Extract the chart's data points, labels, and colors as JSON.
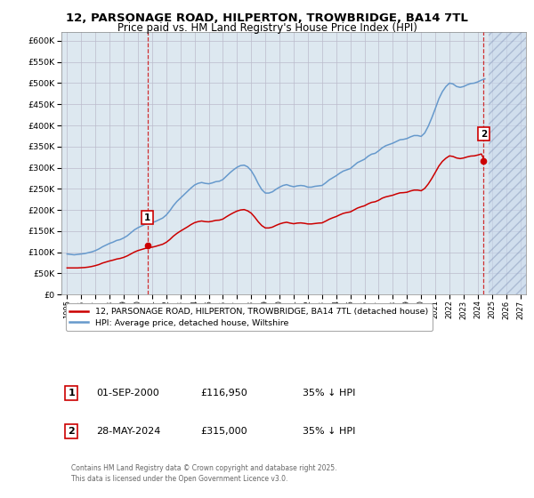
{
  "title_line1": "12, PARSONAGE ROAD, HILPERTON, TROWBRIDGE, BA14 7TL",
  "title_line2": "Price paid vs. HM Land Registry's House Price Index (HPI)",
  "xlim_start": 1994.6,
  "xlim_end": 2027.4,
  "ylim": [
    0,
    620000
  ],
  "yticks": [
    0,
    50000,
    100000,
    150000,
    200000,
    250000,
    300000,
    350000,
    400000,
    450000,
    500000,
    550000,
    600000
  ],
  "ytick_labels": [
    "£0",
    "£50K",
    "£100K",
    "£150K",
    "£200K",
    "£250K",
    "£300K",
    "£350K",
    "£400K",
    "£450K",
    "£500K",
    "£550K",
    "£600K"
  ],
  "xticks": [
    1995,
    1996,
    1997,
    1998,
    1999,
    2000,
    2001,
    2002,
    2003,
    2004,
    2005,
    2006,
    2007,
    2008,
    2009,
    2010,
    2011,
    2012,
    2013,
    2014,
    2015,
    2016,
    2017,
    2018,
    2019,
    2020,
    2021,
    2022,
    2023,
    2024,
    2025,
    2026,
    2027
  ],
  "transaction1_x": 2000.67,
  "transaction1_y": 116950,
  "transaction1_label": "1",
  "transaction2_x": 2024.41,
  "transaction2_y": 315000,
  "transaction2_label": "2",
  "vline1_x": 2000.67,
  "vline2_x": 2024.41,
  "red_line_color": "#cc0000",
  "blue_line_color": "#6699cc",
  "transaction_box_color": "#cc0000",
  "grid_color": "#bbbbcc",
  "background_color": "#dde8f0",
  "hatch_start": 2024.75,
  "hatch_color": "#aabbdd",
  "legend_line1": "12, PARSONAGE ROAD, HILPERTON, TROWBRIDGE, BA14 7TL (detached house)",
  "legend_line2": "HPI: Average price, detached house, Wiltshire",
  "table_row1": [
    "1",
    "01-SEP-2000",
    "£116,950",
    "35% ↓ HPI"
  ],
  "table_row2": [
    "2",
    "28-MAY-2024",
    "£315,000",
    "35% ↓ HPI"
  ],
  "footnote": "Contains HM Land Registry data © Crown copyright and database right 2025.\nThis data is licensed under the Open Government Licence v3.0.",
  "hpi_data_x": [
    1995.0,
    1995.25,
    1995.5,
    1995.75,
    1996.0,
    1996.25,
    1996.5,
    1996.75,
    1997.0,
    1997.25,
    1997.5,
    1997.75,
    1998.0,
    1998.25,
    1998.5,
    1998.75,
    1999.0,
    1999.25,
    1999.5,
    1999.75,
    2000.0,
    2000.25,
    2000.5,
    2000.75,
    2001.0,
    2001.25,
    2001.5,
    2001.75,
    2002.0,
    2002.25,
    2002.5,
    2002.75,
    2003.0,
    2003.25,
    2003.5,
    2003.75,
    2004.0,
    2004.25,
    2004.5,
    2004.75,
    2005.0,
    2005.25,
    2005.5,
    2005.75,
    2006.0,
    2006.25,
    2006.5,
    2006.75,
    2007.0,
    2007.25,
    2007.5,
    2007.75,
    2008.0,
    2008.25,
    2008.5,
    2008.75,
    2009.0,
    2009.25,
    2009.5,
    2009.75,
    2010.0,
    2010.25,
    2010.5,
    2010.75,
    2011.0,
    2011.25,
    2011.5,
    2011.75,
    2012.0,
    2012.25,
    2012.5,
    2012.75,
    2013.0,
    2013.25,
    2013.5,
    2013.75,
    2014.0,
    2014.25,
    2014.5,
    2014.75,
    2015.0,
    2015.25,
    2015.5,
    2015.75,
    2016.0,
    2016.25,
    2016.5,
    2016.75,
    2017.0,
    2017.25,
    2017.5,
    2017.75,
    2018.0,
    2018.25,
    2018.5,
    2018.75,
    2019.0,
    2019.25,
    2019.5,
    2019.75,
    2020.0,
    2020.25,
    2020.5,
    2020.75,
    2021.0,
    2021.25,
    2021.5,
    2021.75,
    2022.0,
    2022.25,
    2022.5,
    2022.75,
    2023.0,
    2023.25,
    2023.5,
    2023.75,
    2024.0,
    2024.25,
    2024.5
  ],
  "hpi_data_y": [
    96000,
    95000,
    94000,
    95000,
    96000,
    97000,
    99000,
    101000,
    104000,
    108000,
    113000,
    117000,
    121000,
    124000,
    128000,
    130000,
    134000,
    139000,
    146000,
    153000,
    158000,
    162000,
    166000,
    169000,
    170000,
    173000,
    177000,
    181000,
    188000,
    198000,
    210000,
    220000,
    228000,
    236000,
    244000,
    252000,
    259000,
    263000,
    265000,
    263000,
    262000,
    264000,
    267000,
    268000,
    272000,
    280000,
    288000,
    295000,
    301000,
    305000,
    306000,
    302000,
    293000,
    279000,
    262000,
    248000,
    240000,
    240000,
    243000,
    249000,
    254000,
    258000,
    260000,
    257000,
    255000,
    257000,
    258000,
    257000,
    254000,
    254000,
    256000,
    257000,
    258000,
    264000,
    271000,
    276000,
    281000,
    287000,
    292000,
    295000,
    298000,
    305000,
    312000,
    316000,
    320000,
    327000,
    332000,
    334000,
    340000,
    347000,
    352000,
    355000,
    358000,
    362000,
    366000,
    367000,
    369000,
    373000,
    376000,
    376000,
    374000,
    382000,
    398000,
    418000,
    440000,
    463000,
    480000,
    492000,
    500000,
    498000,
    492000,
    490000,
    492000,
    496000,
    499000,
    500000,
    503000,
    507000,
    510000
  ],
  "red_data_x": [
    1995.0,
    1995.25,
    1995.5,
    1995.75,
    1996.0,
    1996.25,
    1996.5,
    1996.75,
    1997.0,
    1997.25,
    1997.5,
    1997.75,
    1998.0,
    1998.25,
    1998.5,
    1998.75,
    1999.0,
    1999.25,
    1999.5,
    1999.75,
    2000.0,
    2000.25,
    2000.5,
    2000.75,
    2001.0,
    2001.25,
    2001.5,
    2001.75,
    2002.0,
    2002.25,
    2002.5,
    2002.75,
    2003.0,
    2003.25,
    2003.5,
    2003.75,
    2004.0,
    2004.25,
    2004.5,
    2004.75,
    2005.0,
    2005.25,
    2005.5,
    2005.75,
    2006.0,
    2006.25,
    2006.5,
    2006.75,
    2007.0,
    2007.25,
    2007.5,
    2007.75,
    2008.0,
    2008.25,
    2008.5,
    2008.75,
    2009.0,
    2009.25,
    2009.5,
    2009.75,
    2010.0,
    2010.25,
    2010.5,
    2010.75,
    2011.0,
    2011.25,
    2011.5,
    2011.75,
    2012.0,
    2012.25,
    2012.5,
    2012.75,
    2013.0,
    2013.25,
    2013.5,
    2013.75,
    2014.0,
    2014.25,
    2014.5,
    2014.75,
    2015.0,
    2015.25,
    2015.5,
    2015.75,
    2016.0,
    2016.25,
    2016.5,
    2016.75,
    2017.0,
    2017.25,
    2017.5,
    2017.75,
    2018.0,
    2018.25,
    2018.5,
    2018.75,
    2019.0,
    2019.25,
    2019.5,
    2019.75,
    2020.0,
    2020.25,
    2020.5,
    2020.75,
    2021.0,
    2021.25,
    2021.5,
    2021.75,
    2022.0,
    2022.25,
    2022.5,
    2022.75,
    2023.0,
    2023.25,
    2023.5,
    2023.75,
    2024.0,
    2024.25,
    2024.5
  ],
  "red_data_y": [
    63000,
    63000,
    63000,
    63000,
    63500,
    64000,
    65000,
    66500,
    68500,
    71000,
    74500,
    77000,
    79500,
    81500,
    84000,
    85500,
    88000,
    91500,
    96000,
    100500,
    104000,
    106500,
    109000,
    111000,
    112000,
    114000,
    116500,
    119000,
    123500,
    130000,
    138000,
    144500,
    150000,
    155000,
    160000,
    165500,
    170000,
    172500,
    174000,
    172500,
    172000,
    173500,
    175500,
    176000,
    178500,
    184000,
    189000,
    193500,
    197500,
    200000,
    201000,
    198000,
    192500,
    183000,
    172000,
    163000,
    157500,
    157500,
    159500,
    163500,
    167000,
    169500,
    171000,
    169000,
    167500,
    169000,
    169500,
    168500,
    167000,
    167000,
    168000,
    169000,
    169500,
    173500,
    178000,
    181500,
    184500,
    188500,
    192000,
    194000,
    195500,
    200000,
    204500,
    207500,
    210000,
    214500,
    218000,
    219500,
    223000,
    228000,
    231000,
    233000,
    235000,
    238000,
    240500,
    241000,
    242000,
    245000,
    247000,
    247000,
    245500,
    251000,
    261500,
    274500,
    289000,
    304000,
    315000,
    322500,
    328000,
    326500,
    323000,
    321500,
    323000,
    325500,
    327500,
    328000,
    330000,
    332500,
    315000
  ]
}
